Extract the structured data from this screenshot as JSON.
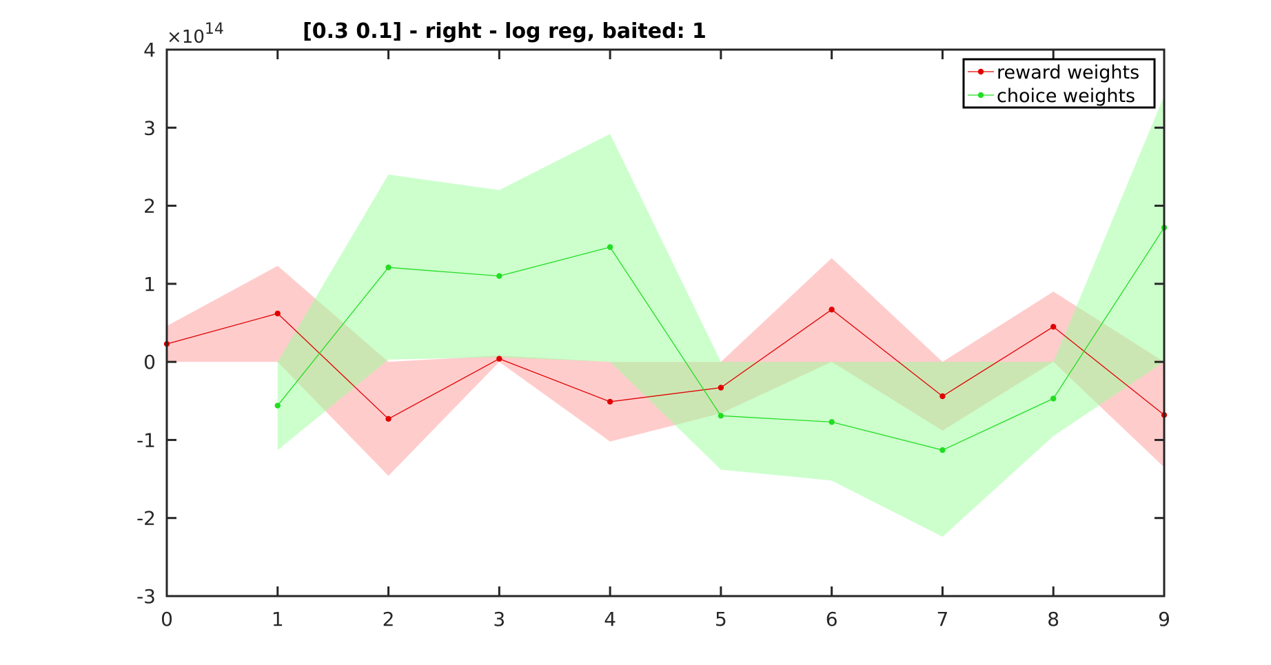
{
  "chart_data": {
    "type": "line",
    "title": "[0.3 0.1] - right - log reg, baited: 1",
    "xlabel": "",
    "ylabel": "",
    "y_exponent_label": "×10",
    "y_exponent_power": "14",
    "xlim": [
      0,
      9
    ],
    "ylim": [
      -3,
      4
    ],
    "xticks": [
      0,
      1,
      2,
      3,
      4,
      5,
      6,
      7,
      8,
      9
    ],
    "yticks": [
      -3,
      -2,
      -1,
      0,
      1,
      2,
      3,
      4
    ],
    "grid": false,
    "legend_position": "top-right",
    "series": [
      {
        "name": "reward weights",
        "color": "#e00000",
        "band_color": "#ff9999",
        "x": [
          0,
          1,
          2,
          3,
          4,
          5,
          6,
          7,
          8,
          9
        ],
        "y": [
          0.23,
          0.62,
          -0.73,
          0.04,
          -0.51,
          -0.33,
          0.67,
          -0.44,
          0.45,
          -0.68
        ],
        "upper": [
          0.46,
          1.23,
          0.0,
          0.08,
          0.0,
          0.0,
          1.33,
          0.0,
          0.9,
          0.0
        ],
        "lower": [
          0.0,
          0.0,
          -1.46,
          0.0,
          -1.02,
          -0.66,
          0.0,
          -0.88,
          0.0,
          -1.35
        ]
      },
      {
        "name": "choice weights",
        "color": "#22dd22",
        "band_color": "#99ff99",
        "x": [
          1,
          2,
          3,
          4,
          5,
          6,
          7,
          8,
          9
        ],
        "y": [
          -0.56,
          1.21,
          1.1,
          1.47,
          -0.69,
          -0.77,
          -1.13,
          -0.47,
          1.72
        ],
        "upper": [
          0.0,
          2.4,
          2.2,
          2.92,
          0.0,
          0.0,
          0.0,
          0.0,
          3.41
        ],
        "lower": [
          -1.13,
          0.03,
          0.06,
          0.0,
          -1.38,
          -1.52,
          -2.24,
          -0.95,
          0.0
        ]
      }
    ]
  }
}
